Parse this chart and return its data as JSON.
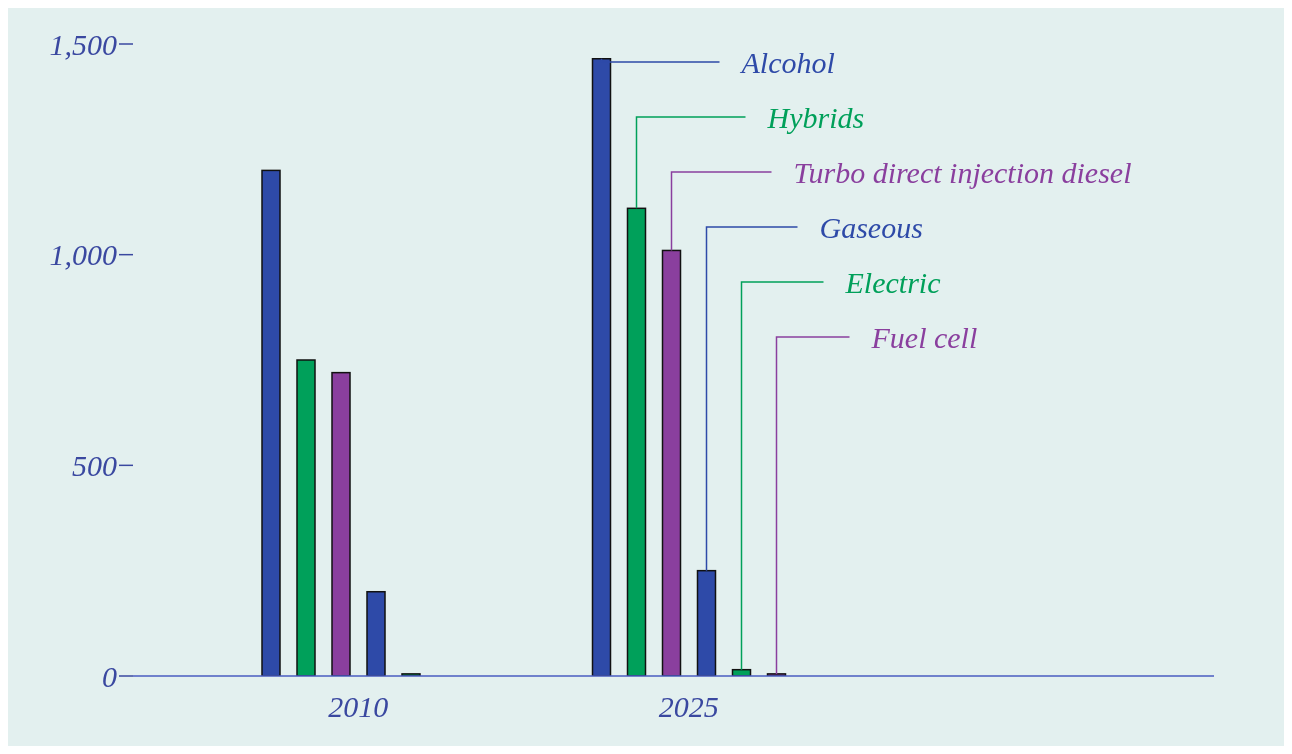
{
  "chart_data": {
    "type": "bar",
    "categories": [
      "2010",
      "2025"
    ],
    "series": [
      {
        "name": "Alcohol",
        "color": "#2e4aa8",
        "values": [
          1200,
          1465
        ]
      },
      {
        "name": "Hybrids",
        "color": "#00a05a",
        "values": [
          750,
          1110
        ]
      },
      {
        "name": "Turbo direct injection diesel",
        "color": "#8a3f9e",
        "values": [
          720,
          1010
        ]
      },
      {
        "name": "Gaseous",
        "color": "#2e4aa8",
        "values": [
          200,
          250
        ]
      },
      {
        "name": "Electric",
        "color": "#00a05a",
        "values": [
          5,
          15
        ]
      },
      {
        "name": "Fuel cell",
        "color": "#8a3f9e",
        "values": [
          0,
          5
        ]
      }
    ],
    "ylim": [
      0,
      1500
    ],
    "yticks": [
      0,
      500,
      {
        "value": 1000,
        "label": "1,000"
      },
      {
        "value": 1500,
        "label": "1,500"
      }
    ],
    "grid": false,
    "legend": "top right"
  }
}
